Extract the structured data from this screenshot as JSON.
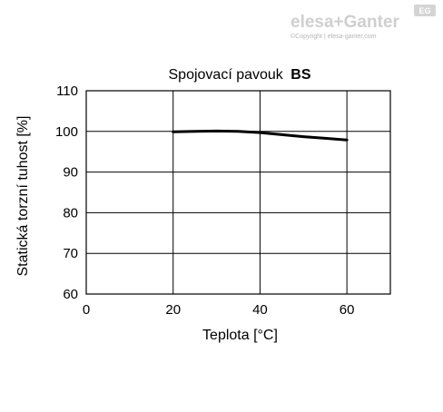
{
  "brand": {
    "logo_text": "elesa+Ganter",
    "badge": "EG",
    "copyright": "©Copyright | elesa-ganter.com"
  },
  "chart_data": {
    "type": "line",
    "title": "Spojovací pavouk",
    "title_bold": "BS",
    "xlabel": "Teplota [°C]",
    "ylabel": "Statická torzní tuhost [%]",
    "xlim": [
      0,
      70
    ],
    "ylim": [
      60,
      110
    ],
    "xticks": [
      0,
      20,
      40,
      60
    ],
    "yticks": [
      60,
      70,
      80,
      90,
      100,
      110
    ],
    "grid": true,
    "series": [
      {
        "x": [
          20,
          25,
          30,
          35,
          40,
          45,
          50,
          55,
          60
        ],
        "y": [
          99.9,
          100.0,
          100.1,
          100.0,
          99.7,
          99.2,
          98.7,
          98.3,
          97.9
        ]
      }
    ]
  }
}
